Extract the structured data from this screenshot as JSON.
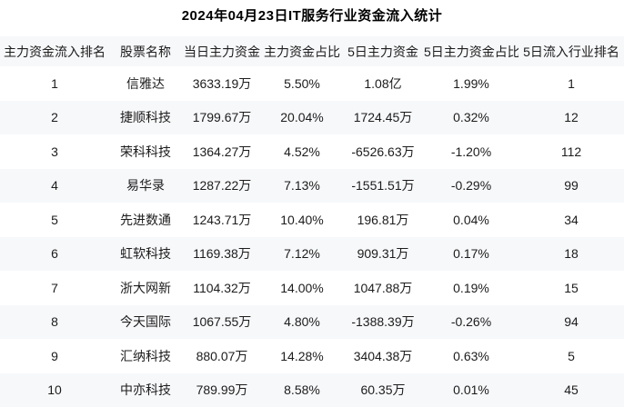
{
  "title": "2024年04月23日IT服务行业资金流入统计",
  "colors": {
    "stripe_bg": "#f7f8fa",
    "row_bg": "#ffffff",
    "text": "#1c1c1c",
    "title_text": "#000000"
  },
  "table": {
    "headers": [
      "主力资金流入排名",
      "股票名称",
      "当日主力资金",
      "主力资金占比",
      "5日主力资金",
      "5日主力资金占比",
      "5日流入行业排名"
    ],
    "rows": [
      [
        "1",
        "信雅达",
        "3633.19万",
        "5.50%",
        "1.08亿",
        "1.99%",
        "1"
      ],
      [
        "2",
        "捷顺科技",
        "1799.67万",
        "20.04%",
        "1724.45万",
        "0.32%",
        "12"
      ],
      [
        "3",
        "荣科科技",
        "1364.27万",
        "4.52%",
        "-6526.63万",
        "-1.20%",
        "112"
      ],
      [
        "4",
        "易华录",
        "1287.22万",
        "7.13%",
        "-1551.51万",
        "-0.29%",
        "99"
      ],
      [
        "5",
        "先进数通",
        "1243.71万",
        "10.40%",
        "196.81万",
        "0.04%",
        "34"
      ],
      [
        "6",
        "虹软科技",
        "1169.38万",
        "7.12%",
        "909.31万",
        "0.17%",
        "18"
      ],
      [
        "7",
        "浙大网新",
        "1104.32万",
        "14.00%",
        "1047.88万",
        "0.19%",
        "15"
      ],
      [
        "8",
        "今天国际",
        "1067.55万",
        "4.80%",
        "-1388.39万",
        "-0.26%",
        "94"
      ],
      [
        "9",
        "汇纳科技",
        "880.07万",
        "14.28%",
        "3404.38万",
        "0.63%",
        "5"
      ],
      [
        "10",
        "中亦科技",
        "789.99万",
        "8.58%",
        "60.35万",
        "0.01%",
        "45"
      ]
    ]
  },
  "chart_data": {
    "type": "table",
    "title": "2024年04月23日IT服务行业资金流入统计",
    "columns": [
      "主力资金流入排名",
      "股票名称",
      "当日主力资金",
      "主力资金占比",
      "5日主力资金",
      "5日主力资金占比",
      "5日流入行业排名"
    ],
    "rows": [
      [
        "1",
        "信雅达",
        "3633.19万",
        "5.50%",
        "1.08亿",
        "1.99%",
        "1"
      ],
      [
        "2",
        "捷顺科技",
        "1799.67万",
        "20.04%",
        "1724.45万",
        "0.32%",
        "12"
      ],
      [
        "3",
        "荣科科技",
        "1364.27万",
        "4.52%",
        "-6526.63万",
        "-1.20%",
        "112"
      ],
      [
        "4",
        "易华录",
        "1287.22万",
        "7.13%",
        "-1551.51万",
        "-0.29%",
        "99"
      ],
      [
        "5",
        "先进数通",
        "1243.71万",
        "10.40%",
        "196.81万",
        "0.04%",
        "34"
      ],
      [
        "6",
        "虹软科技",
        "1169.38万",
        "7.12%",
        "909.31万",
        "0.17%",
        "18"
      ],
      [
        "7",
        "浙大网新",
        "1104.32万",
        "14.00%",
        "1047.88万",
        "0.19%",
        "15"
      ],
      [
        "8",
        "今天国际",
        "1067.55万",
        "4.80%",
        "-1388.39万",
        "-0.26%",
        "94"
      ],
      [
        "9",
        "汇纳科技",
        "880.07万",
        "14.28%",
        "3404.38万",
        "0.63%",
        "5"
      ],
      [
        "10",
        "中亦科技",
        "789.99万",
        "8.58%",
        "60.35万",
        "0.01%",
        "45"
      ]
    ]
  }
}
